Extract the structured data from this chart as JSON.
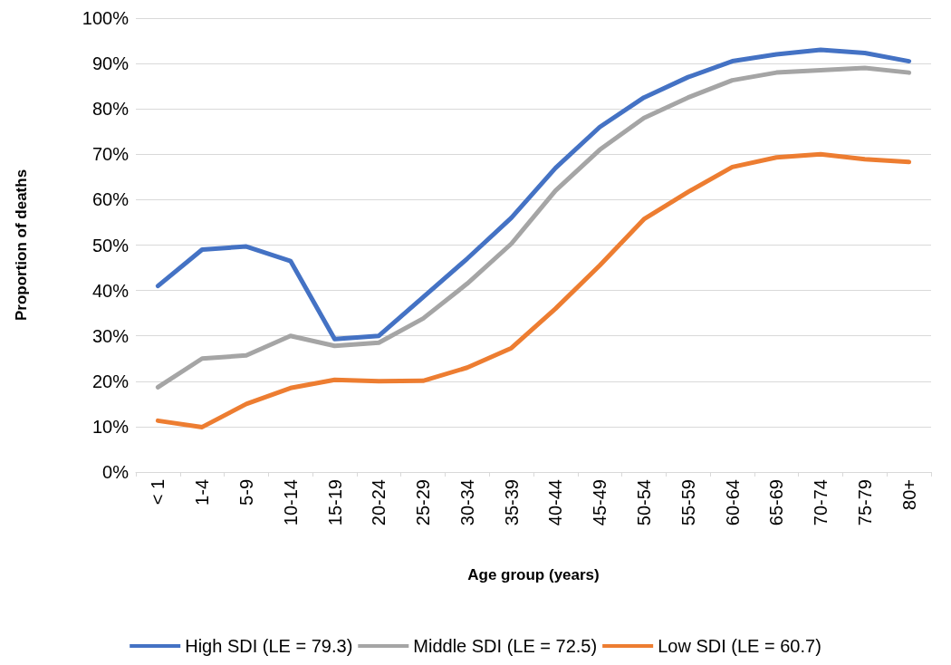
{
  "chart_data": {
    "type": "line",
    "xlabel": "Age group (years)",
    "ylabel": "Proportion of deaths",
    "categories": [
      "< 1",
      "1-4",
      "5-9",
      "10-14",
      "15-19",
      "20-24",
      "25-29",
      "30-34",
      "35-39",
      "40-44",
      "45-49",
      "50-54",
      "55-59",
      "60-64",
      "65-69",
      "70-74",
      "75-79",
      "80+"
    ],
    "series": [
      {
        "name": "High SDI (LE = 79.3)",
        "color": "#4472c4",
        "values": [
          41,
          49,
          49.7,
          46.5,
          29.3,
          30,
          38.5,
          47,
          56,
          67,
          76,
          82.5,
          87,
          90.5,
          92,
          93,
          92.3,
          90.5
        ]
      },
      {
        "name": "Middle SDI (LE = 72.5)",
        "color": "#a5a5a5",
        "values": [
          18.7,
          25,
          25.7,
          30,
          27.8,
          28.5,
          33.8,
          41.5,
          50.3,
          62,
          71,
          78,
          82.5,
          86.3,
          88,
          88.5,
          89,
          88
        ]
      },
      {
        "name": "Low SDI (LE = 60.7)",
        "color": "#ed7d31",
        "values": [
          11.3,
          9.9,
          15,
          18.5,
          20.3,
          20,
          20.1,
          23,
          27.3,
          36,
          45.5,
          55.7,
          61.7,
          67.2,
          69.3,
          70,
          68.9,
          68.3
        ]
      }
    ],
    "ylim": [
      0,
      100
    ],
    "yticks": [
      {
        "value": 0,
        "label": "0%"
      },
      {
        "value": 10,
        "label": "10%"
      },
      {
        "value": 20,
        "label": "20%"
      },
      {
        "value": 30,
        "label": "30%"
      },
      {
        "value": 40,
        "label": "40%"
      },
      {
        "value": 50,
        "label": "50%"
      },
      {
        "value": 60,
        "label": "60%"
      },
      {
        "value": 70,
        "label": "70%"
      },
      {
        "value": 80,
        "label": "80%"
      },
      {
        "value": 90,
        "label": "90%"
      },
      {
        "value": 100,
        "label": "100%"
      }
    ],
    "grid": "y",
    "legend": "bottom",
    "marker": "none",
    "line_style": "solid"
  }
}
